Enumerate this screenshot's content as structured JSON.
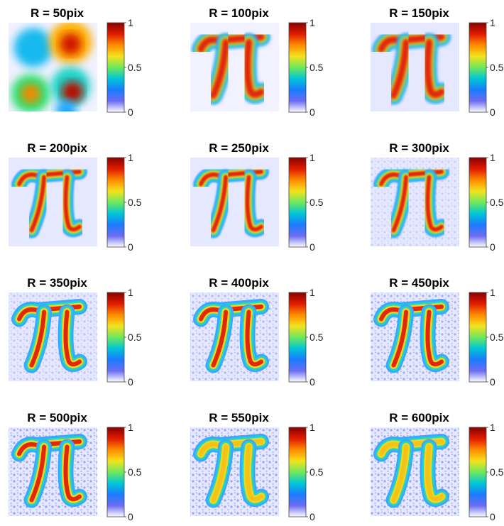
{
  "chart_data": {
    "type": "heatmap",
    "layout": "4x3 grid of image panels, each with its own colorbar",
    "colormap": [
      "#ffffff",
      "#6c6cf2",
      "#1a7cff",
      "#00c7d6",
      "#6ee85c",
      "#f4e21c",
      "#ff8a00",
      "#e01b00",
      "#8a0000"
    ],
    "colorbar_range": [
      0,
      1
    ],
    "colorbar_ticks": [
      "0",
      "0.5",
      "1"
    ],
    "grid": false,
    "panels": [
      {
        "title": "R = 50pix",
        "radius": 50
      },
      {
        "title": "R = 100pix",
        "radius": 100
      },
      {
        "title": "R = 150pix",
        "radius": 150
      },
      {
        "title": "R = 200pix",
        "radius": 200
      },
      {
        "title": "R = 250pix",
        "radius": 250
      },
      {
        "title": "R = 300pix",
        "radius": 300
      },
      {
        "title": "R = 350pix",
        "radius": 350
      },
      {
        "title": "R = 400pix",
        "radius": 400
      },
      {
        "title": "R = 450pix",
        "radius": 450
      },
      {
        "title": "R = 500pix",
        "radius": 500
      },
      {
        "title": "R = 550pix",
        "radius": 550
      },
      {
        "title": "R = 600pix",
        "radius": 600
      }
    ]
  }
}
